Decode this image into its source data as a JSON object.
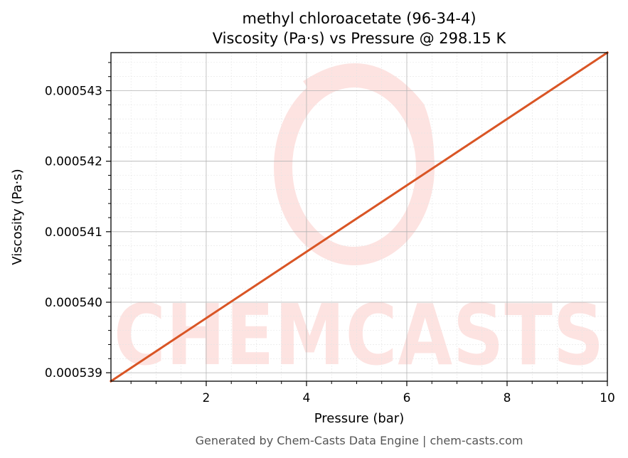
{
  "chart_data": {
    "type": "line",
    "title": "methyl chloroacetate (96-34-4)",
    "subtitle": "Viscosity (Pa·s) vs Pressure @ 298.15 K",
    "xlabel": "Pressure (bar)",
    "ylabel": "Viscosity (Pa·s)",
    "xlim": [
      0.1,
      10
    ],
    "ylim": [
      0.00053888,
      0.00054354
    ],
    "x_ticks": [
      2,
      4,
      6,
      8,
      10
    ],
    "x_tick_labels": [
      "2",
      "4",
      "6",
      "8",
      "10"
    ],
    "y_ticks": [
      0.000539,
      0.00054,
      0.000541,
      0.000542,
      0.000543
    ],
    "y_tick_labels": [
      "0.000539",
      "0.000540",
      "0.000541",
      "0.000542",
      "0.000543"
    ],
    "grid": true,
    "legend": "none",
    "series": [
      {
        "color": "#d95525",
        "x": [
          0.1,
          10
        ],
        "y": [
          0.00053888,
          0.00054354
        ]
      }
    ]
  },
  "watermark": {
    "text": "CHEMCASTS",
    "color": "#fde3e1"
  },
  "footer": "Generated by Chem-Casts Data Engine | chem-casts.com"
}
